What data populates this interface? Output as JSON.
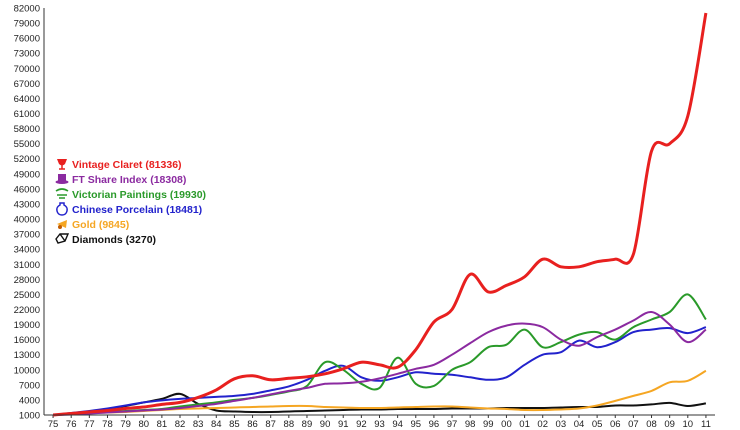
{
  "chart_data": {
    "type": "line",
    "title": "",
    "xlabel": "",
    "ylabel": "",
    "grid": false,
    "legend_position": "middle-left",
    "x": [
      "75",
      "76",
      "77",
      "78",
      "79",
      "80",
      "81",
      "82",
      "83",
      "84",
      "85",
      "86",
      "87",
      "88",
      "89",
      "90",
      "91",
      "92",
      "93",
      "94",
      "95",
      "96",
      "97",
      "98",
      "99",
      "00",
      "01",
      "02",
      "03",
      "04",
      "05",
      "06",
      "07",
      "08",
      "09",
      "10",
      "11"
    ],
    "y_ticks": [
      1000,
      4000,
      7000,
      10000,
      13000,
      16000,
      19000,
      22000,
      25000,
      28000,
      31000,
      34000,
      37000,
      40000,
      43000,
      46000,
      49000,
      52000,
      55000,
      58000,
      61000,
      64000,
      67000,
      70000,
      73000,
      76000,
      79000,
      82000
    ],
    "ylim": [
      1000,
      82000
    ],
    "series": [
      {
        "name": "Vintage Claret",
        "value_label": "(81336)",
        "color": "#e8201f",
        "icon": "wine-glass-icon",
        "values": [
          1000,
          1300,
          1600,
          1900,
          2300,
          2600,
          3100,
          3500,
          4500,
          6000,
          8200,
          8800,
          8000,
          8300,
          8600,
          9200,
          10200,
          11500,
          11000,
          10500,
          14000,
          19500,
          22000,
          29000,
          25500,
          26800,
          28500,
          32000,
          30500,
          30500,
          31500,
          32000,
          33000,
          53500,
          55000,
          60500,
          81000
        ]
      },
      {
        "name": "FT Share Index",
        "value_label": "(18308)",
        "color": "#8b2aa0",
        "icon": "top-hat-icon",
        "values": [
          1000,
          1100,
          1300,
          1500,
          1700,
          1900,
          2100,
          2400,
          2800,
          3200,
          3800,
          4400,
          5100,
          5800,
          6400,
          7200,
          7300,
          7600,
          8300,
          9200,
          10200,
          11000,
          13000,
          15300,
          17500,
          18800,
          19200,
          18500,
          16000,
          14800,
          16500,
          18000,
          19800,
          21500,
          19000,
          15500,
          18000
        ]
      },
      {
        "name": "Victorian Paintings",
        "value_label": "(19930)",
        "color": "#2a9a2a",
        "icon": "painting-icon",
        "values": [
          1000,
          1200,
          1400,
          1600,
          1800,
          2000,
          2200,
          2700,
          3100,
          3500,
          4000,
          4400,
          5000,
          5700,
          6800,
          11500,
          10000,
          7200,
          6400,
          12400,
          7200,
          6800,
          10000,
          11500,
          14500,
          15000,
          18000,
          14500,
          15500,
          17000,
          17500,
          16000,
          18500,
          20000,
          21500,
          25000,
          20000
        ]
      },
      {
        "name": "Chinese Porcelain",
        "value_label": "(18481)",
        "color": "#2222cc",
        "icon": "vase-icon",
        "values": [
          1000,
          1400,
          1800,
          2300,
          2900,
          3500,
          3900,
          4200,
          4400,
          4600,
          4800,
          5200,
          5900,
          6700,
          8000,
          9800,
          10800,
          8500,
          7800,
          8500,
          9500,
          9200,
          9000,
          8500,
          8000,
          8500,
          11000,
          13000,
          13500,
          15800,
          14500,
          15500,
          17500,
          18000,
          18300,
          17300,
          18500
        ]
      },
      {
        "name": "Gold",
        "value_label": "(9845)",
        "color": "#f5a623",
        "icon": "gold-bar-icon",
        "values": [
          1000,
          1200,
          1400,
          1500,
          1600,
          1800,
          2000,
          2200,
          2300,
          2400,
          2500,
          2600,
          2700,
          2800,
          2800,
          2600,
          2500,
          2400,
          2400,
          2500,
          2600,
          2700,
          2700,
          2500,
          2300,
          2200,
          2000,
          2000,
          2100,
          2300,
          2900,
          3800,
          4800,
          5800,
          7500,
          7800,
          9800
        ]
      },
      {
        "name": "Diamonds",
        "value_label": "(3270)",
        "color": "#111111",
        "icon": "diamond-icon",
        "values": [
          1000,
          1300,
          1700,
          2200,
          2800,
          3500,
          4200,
          5200,
          3200,
          1900,
          1700,
          1600,
          1600,
          1700,
          1800,
          1900,
          2000,
          2100,
          2100,
          2200,
          2200,
          2200,
          2300,
          2300,
          2300,
          2400,
          2400,
          2400,
          2500,
          2600,
          2600,
          2900,
          2900,
          3100,
          3400,
          2800,
          3300
        ]
      }
    ]
  }
}
